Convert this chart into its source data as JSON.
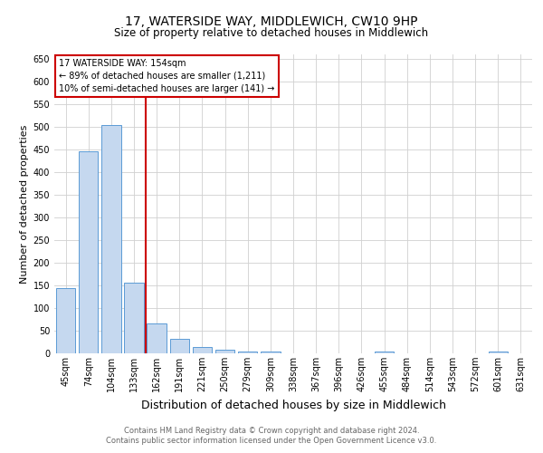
{
  "title": "17, WATERSIDE WAY, MIDDLEWICH, CW10 9HP",
  "subtitle": "Size of property relative to detached houses in Middlewich",
  "xlabel": "Distribution of detached houses by size in Middlewich",
  "ylabel": "Number of detached properties",
  "footnote1": "Contains HM Land Registry data © Crown copyright and database right 2024.",
  "footnote2": "Contains public sector information licensed under the Open Government Licence v3.0.",
  "categories": [
    "45sqm",
    "74sqm",
    "104sqm",
    "133sqm",
    "162sqm",
    "191sqm",
    "221sqm",
    "250sqm",
    "279sqm",
    "309sqm",
    "338sqm",
    "367sqm",
    "396sqm",
    "426sqm",
    "455sqm",
    "484sqm",
    "514sqm",
    "543sqm",
    "572sqm",
    "601sqm",
    "631sqm"
  ],
  "values": [
    145,
    447,
    505,
    157,
    67,
    32,
    14,
    9,
    5,
    5,
    0,
    0,
    0,
    0,
    5,
    0,
    0,
    0,
    0,
    5,
    0
  ],
  "bar_color": "#c5d8ef",
  "bar_edge_color": "#5b9bd5",
  "red_line_color": "#cc0000",
  "annotation_text": "17 WATERSIDE WAY: 154sqm\n← 89% of detached houses are smaller (1,211)\n10% of semi-detached houses are larger (141) →",
  "annotation_box_color": "#ffffff",
  "annotation_box_edge_color": "#cc0000",
  "ylim": [
    0,
    660
  ],
  "yticks": [
    0,
    50,
    100,
    150,
    200,
    250,
    300,
    350,
    400,
    450,
    500,
    550,
    600,
    650
  ],
  "background_color": "#ffffff",
  "grid_color": "#d0d0d0",
  "title_fontsize": 10,
  "subtitle_fontsize": 8.5,
  "ylabel_fontsize": 8,
  "xlabel_fontsize": 9,
  "tick_fontsize": 7,
  "annot_fontsize": 7,
  "footnote_fontsize": 6
}
